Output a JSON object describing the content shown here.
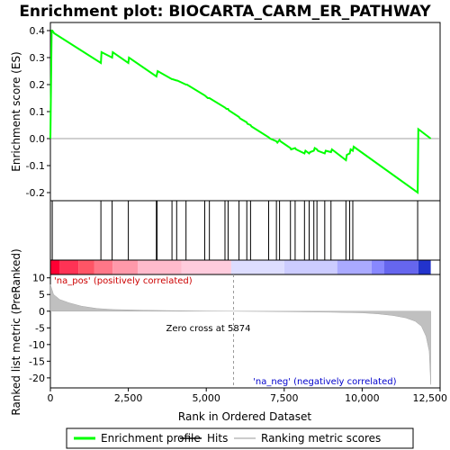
{
  "chart_data": {
    "title": "Enrichment plot: BIOCARTA_CARM_ER_PATHWAY",
    "type": "line",
    "es_panel": {
      "ylabel": "Enrichment score (ES)",
      "ylim": [
        -0.23,
        0.43
      ],
      "yticks": [
        "0.4",
        "0.3",
        "0.2",
        "0.1",
        "0.0",
        "-0.1",
        "-0.2"
      ],
      "ytick_values": [
        0.4,
        0.3,
        0.2,
        0.1,
        0.0,
        -0.1,
        -0.2
      ],
      "series": [
        {
          "name": "Enrichment profile",
          "color": "#00ff00",
          "x": [
            0,
            40,
            60,
            120,
            1620,
            1640,
            1980,
            2000,
            2500,
            2520,
            3400,
            3420,
            3440,
            3900,
            3920,
            4050,
            4070,
            4350,
            4380,
            4950,
            5000,
            5050,
            5100,
            5600,
            5650,
            5700,
            5720,
            6050,
            6080,
            6300,
            6320,
            6420,
            6450,
            7000,
            7050,
            7250,
            7280,
            7350,
            7380,
            7700,
            7720,
            7850,
            7880,
            8150,
            8180,
            8300,
            8330,
            8450,
            8480,
            8550,
            8580,
            8800,
            8830,
            9000,
            9030,
            9480,
            9510,
            9600,
            9630,
            9700,
            9730,
            11780,
            11800,
            12200
          ],
          "y": [
            0.0,
            0.4,
            0.4,
            0.39,
            0.28,
            0.32,
            0.3,
            0.32,
            0.28,
            0.3,
            0.23,
            0.24,
            0.25,
            0.22,
            0.22,
            0.215,
            0.215,
            0.2,
            0.2,
            0.16,
            0.155,
            0.15,
            0.15,
            0.115,
            0.11,
            0.11,
            0.105,
            0.08,
            0.075,
            0.06,
            0.055,
            0.05,
            0.045,
            0.005,
            0.0,
            -0.01,
            -0.015,
            -0.005,
            -0.01,
            -0.035,
            -0.04,
            -0.035,
            -0.04,
            -0.055,
            -0.045,
            -0.055,
            -0.05,
            -0.045,
            -0.035,
            -0.04,
            -0.045,
            -0.055,
            -0.045,
            -0.05,
            -0.04,
            -0.08,
            -0.06,
            -0.055,
            -0.04,
            -0.045,
            -0.03,
            -0.2,
            0.035,
            0.0
          ]
        }
      ]
    },
    "hits": [
      60,
      1620,
      1980,
      2500,
      3400,
      3420,
      3900,
      4050,
      4350,
      4950,
      5100,
      5600,
      5700,
      6050,
      6300,
      6420,
      7000,
      7250,
      7350,
      7700,
      7850,
      8150,
      8300,
      8450,
      8550,
      8800,
      9000,
      9480,
      9600,
      9700,
      11780
    ],
    "rank_panel": {
      "ylabel": "Ranked list metric (PreRanked)",
      "ylim": [
        -23,
        11
      ],
      "yticks": [
        "10",
        "5",
        "0",
        "-5",
        "-10",
        "-15",
        "-20"
      ],
      "ytick_values": [
        10,
        5,
        0,
        -5,
        -10,
        -15,
        -20
      ],
      "profile_x": [
        0,
        100,
        300,
        600,
        1000,
        1500,
        2000,
        3000,
        4000,
        5000,
        5874,
        7000,
        8000,
        9000,
        10000,
        10500,
        11000,
        11400,
        11700,
        11900,
        12050,
        12150,
        12200
      ],
      "profile_y": [
        8.0,
        5.0,
        3.5,
        2.5,
        1.5,
        0.8,
        0.5,
        0.3,
        0.15,
        0.05,
        0.0,
        -0.1,
        -0.2,
        -0.3,
        -0.5,
        -0.8,
        -1.3,
        -2.0,
        -3.0,
        -4.5,
        -7.5,
        -12.0,
        -22.0
      ],
      "pos_label": "'na_pos' (positively correlated)",
      "neg_label": "'na_neg' (negatively correlated)",
      "zero_cross_label": "Zero cross at 5874",
      "zero_cross": 5874
    },
    "xlabel": "Rank in Ordered Dataset",
    "xlim": [
      0,
      12500
    ],
    "xticks": [
      "0",
      "2,500",
      "5,000",
      "7,500",
      "10,000",
      "12,500"
    ],
    "xtick_values": [
      0,
      2500,
      5000,
      7500,
      10000,
      12500
    ],
    "heatbar_colors": [
      {
        "from": 0,
        "to": 300,
        "color": "#ff0033"
      },
      {
        "from": 300,
        "to": 900,
        "color": "#ff3355"
      },
      {
        "from": 900,
        "to": 1400,
        "color": "#ff5566"
      },
      {
        "from": 1400,
        "to": 2000,
        "color": "#ff7788"
      },
      {
        "from": 2000,
        "to": 2800,
        "color": "#ff99aa"
      },
      {
        "from": 2800,
        "to": 4200,
        "color": "#ffbbcc"
      },
      {
        "from": 4200,
        "to": 5800,
        "color": "#ffccdd"
      },
      {
        "from": 5800,
        "to": 7500,
        "color": "#ddddff"
      },
      {
        "from": 7500,
        "to": 9200,
        "color": "#ccccff"
      },
      {
        "from": 9200,
        "to": 10300,
        "color": "#aaaaff"
      },
      {
        "from": 10300,
        "to": 10700,
        "color": "#8888ff"
      },
      {
        "from": 10700,
        "to": 11800,
        "color": "#6666ee"
      },
      {
        "from": 11800,
        "to": 12200,
        "color": "#2233cc"
      }
    ],
    "legend": {
      "items": [
        {
          "label": "Enrichment profile",
          "color": "#00ff00"
        },
        {
          "label": "Hits",
          "color": "#000000"
        },
        {
          "label": "Ranking metric scores",
          "color": "#bbbbbb"
        }
      ],
      "position": "bottom"
    }
  }
}
